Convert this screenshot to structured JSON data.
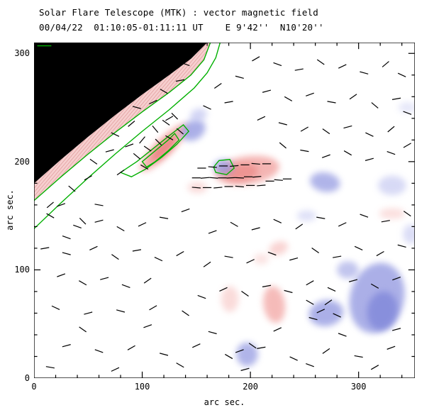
{
  "chart_data": {
    "type": "heatmap",
    "title": "Solar Flare Telescope (MTK) : vector magnetic field",
    "subtitle": "00/04/22  01:10:05-01:11:11 UT    E 9'42''  N10'20''",
    "xlabel": "arc sec.",
    "ylabel": "arc sec.",
    "xlim": [
      0,
      352
    ],
    "ylim": [
      0,
      310
    ],
    "xticks": [
      0,
      100,
      200,
      300
    ],
    "yticks": [
      0,
      100,
      200,
      300
    ],
    "minor_tick_step": 20,
    "contour_color": "#00b000",
    "positive_polarity_color": "#ef8f8c",
    "negative_polarity_color": "#8f95e0",
    "limb_region": [
      [
        0,
        180
      ],
      [
        25,
        202
      ],
      [
        50,
        223
      ],
      [
        75,
        243
      ],
      [
        100,
        262
      ],
      [
        125,
        280
      ],
      [
        145,
        295
      ],
      [
        160,
        310
      ],
      [
        0,
        310
      ]
    ],
    "limb_band": [
      [
        0,
        180
      ],
      [
        25,
        202
      ],
      [
        50,
        223
      ],
      [
        75,
        243
      ],
      [
        100,
        262
      ],
      [
        125,
        280
      ],
      [
        145,
        295
      ],
      [
        160,
        310
      ],
      [
        163,
        310
      ],
      [
        157,
        294
      ],
      [
        145,
        280
      ],
      [
        125,
        264
      ],
      [
        100,
        246
      ],
      [
        75,
        227
      ],
      [
        50,
        207
      ],
      [
        25,
        186
      ],
      [
        0,
        164
      ]
    ],
    "contours": [
      {
        "name": "limb-outer",
        "closed": false,
        "points": [
          [
            0,
            138
          ],
          [
            25,
            162
          ],
          [
            50,
            185
          ],
          [
            75,
            207
          ],
          [
            100,
            228
          ],
          [
            125,
            248
          ],
          [
            148,
            268
          ],
          [
            160,
            282
          ],
          [
            168,
            296
          ],
          [
            172,
            310
          ]
        ]
      },
      {
        "name": "limb-inner",
        "closed": false,
        "points": [
          [
            0,
            164
          ],
          [
            25,
            186
          ],
          [
            50,
            207
          ],
          [
            75,
            227
          ],
          [
            100,
            246
          ],
          [
            125,
            264
          ],
          [
            145,
            280
          ],
          [
            157,
            294
          ],
          [
            163,
            310
          ]
        ]
      },
      {
        "name": "active-region-loop",
        "closed": true,
        "points": [
          [
            80,
            190
          ],
          [
            95,
            200
          ],
          [
            110,
            212
          ],
          [
            125,
            224
          ],
          [
            138,
            234
          ],
          [
            143,
            228
          ],
          [
            132,
            216
          ],
          [
            118,
            204
          ],
          [
            103,
            193
          ],
          [
            90,
            186
          ]
        ]
      },
      {
        "name": "active-region-loop-inner",
        "closed": true,
        "points": [
          [
            100,
            200
          ],
          [
            112,
            210
          ],
          [
            124,
            220
          ],
          [
            130,
            226
          ],
          [
            134,
            220
          ],
          [
            124,
            210
          ],
          [
            112,
            200
          ],
          [
            104,
            195
          ]
        ]
      },
      {
        "name": "small-loop",
        "closed": true,
        "points": [
          [
            168,
            190
          ],
          [
            178,
            188
          ],
          [
            185,
            194
          ],
          [
            181,
            202
          ],
          [
            171,
            201
          ],
          [
            166,
            195
          ]
        ]
      },
      {
        "name": "top-left-dash",
        "closed": false,
        "points": [
          [
            3,
            307
          ],
          [
            16,
            307
          ]
        ]
      }
    ],
    "blobs": [
      {
        "x": 120,
        "y": 213,
        "rx": 30,
        "ry": 8,
        "rot": 45,
        "color": "#ef8f8c",
        "opacity": 0.7
      },
      {
        "x": 120,
        "y": 212,
        "rx": 16,
        "ry": 5,
        "rot": 45,
        "color": "#e87a78",
        "opacity": 0.75
      },
      {
        "x": 197,
        "y": 192,
        "rx": 30,
        "ry": 13,
        "rot": 8,
        "color": "#ef8f8c",
        "opacity": 0.65
      },
      {
        "x": 191,
        "y": 190,
        "rx": 16,
        "ry": 8,
        "rot": 8,
        "color": "#e87a78",
        "opacity": 0.55
      },
      {
        "x": 151,
        "y": 176,
        "rx": 9,
        "ry": 5,
        "rot": 0,
        "color": "#f4b0ae",
        "opacity": 0.45
      },
      {
        "x": 226,
        "y": 120,
        "rx": 9,
        "ry": 6,
        "rot": 20,
        "color": "#f4b0ae",
        "opacity": 0.55
      },
      {
        "x": 222,
        "y": 68,
        "rx": 10,
        "ry": 17,
        "rot": 8,
        "color": "#ef8f8c",
        "opacity": 0.6
      },
      {
        "x": 181,
        "y": 73,
        "rx": 8,
        "ry": 12,
        "rot": 0,
        "color": "#f4b0ae",
        "opacity": 0.45
      },
      {
        "x": 331,
        "y": 152,
        "rx": 12,
        "ry": 5,
        "rot": 0,
        "color": "#f4b0ae",
        "opacity": 0.4
      },
      {
        "x": 210,
        "y": 110,
        "rx": 7,
        "ry": 5,
        "rot": 0,
        "color": "#f4b0ae",
        "opacity": 0.35
      },
      {
        "x": 147,
        "y": 229,
        "rx": 12,
        "ry": 9,
        "rot": 30,
        "color": "#8f95e0",
        "opacity": 0.75
      },
      {
        "x": 152,
        "y": 243,
        "rx": 8,
        "ry": 6,
        "rot": 20,
        "color": "#b8bcee",
        "opacity": 0.6
      },
      {
        "x": 175,
        "y": 195,
        "rx": 9,
        "ry": 7,
        "rot": 0,
        "color": "#8f95e0",
        "opacity": 0.75
      },
      {
        "x": 269,
        "y": 181,
        "rx": 14,
        "ry": 9,
        "rot": -10,
        "color": "#8f95e0",
        "opacity": 0.7
      },
      {
        "x": 331,
        "y": 178,
        "rx": 13,
        "ry": 9,
        "rot": 0,
        "color": "#b8bcee",
        "opacity": 0.55
      },
      {
        "x": 317,
        "y": 74,
        "rx": 25,
        "ry": 33,
        "rot": -15,
        "color": "#8f95e0",
        "opacity": 0.75
      },
      {
        "x": 322,
        "y": 62,
        "rx": 14,
        "ry": 18,
        "rot": -10,
        "color": "#7a82d8",
        "opacity": 0.7
      },
      {
        "x": 290,
        "y": 100,
        "rx": 10,
        "ry": 8,
        "rot": 0,
        "color": "#8f95e0",
        "opacity": 0.55
      },
      {
        "x": 270,
        "y": 60,
        "rx": 16,
        "ry": 12,
        "rot": 10,
        "color": "#8f95e0",
        "opacity": 0.75
      },
      {
        "x": 197,
        "y": 22,
        "rx": 10,
        "ry": 11,
        "rot": 0,
        "color": "#8f95e0",
        "opacity": 0.7
      },
      {
        "x": 252,
        "y": 150,
        "rx": 9,
        "ry": 5,
        "rot": 0,
        "color": "#b8bcee",
        "opacity": 0.45
      },
      {
        "x": 348,
        "y": 133,
        "rx": 7,
        "ry": 9,
        "rot": 0,
        "color": "#b8bcee",
        "opacity": 0.5
      },
      {
        "x": 345,
        "y": 250,
        "rx": 8,
        "ry": 5,
        "rot": 0,
        "color": "#b8bcee",
        "opacity": 0.35
      }
    ],
    "vector_length": 8,
    "vectors": [
      [
        15,
        150,
        -30
      ],
      [
        25,
        160,
        20
      ],
      [
        35,
        175,
        -40
      ],
      [
        10,
        120,
        10
      ],
      [
        30,
        130,
        -20
      ],
      [
        50,
        185,
        30
      ],
      [
        55,
        200,
        -35
      ],
      [
        70,
        210,
        15
      ],
      [
        75,
        225,
        -25
      ],
      [
        90,
        235,
        40
      ],
      [
        95,
        250,
        -15
      ],
      [
        110,
        255,
        25
      ],
      [
        120,
        265,
        -30
      ],
      [
        135,
        275,
        10
      ],
      [
        60,
        160,
        -10
      ],
      [
        80,
        190,
        35
      ],
      [
        45,
        145,
        -45
      ],
      [
        100,
        220,
        50
      ],
      [
        140,
        290,
        -20
      ],
      [
        125,
        240,
        30
      ],
      [
        150,
        185,
        0
      ],
      [
        158,
        185,
        5
      ],
      [
        166,
        185,
        -5
      ],
      [
        174,
        185,
        0
      ],
      [
        182,
        185,
        3
      ],
      [
        190,
        185,
        -3
      ],
      [
        198,
        186,
        0
      ],
      [
        206,
        186,
        5
      ],
      [
        150,
        176,
        -5
      ],
      [
        160,
        176,
        0
      ],
      [
        170,
        176,
        5
      ],
      [
        180,
        177,
        0
      ],
      [
        190,
        177,
        -5
      ],
      [
        200,
        178,
        0
      ],
      [
        210,
        178,
        5
      ],
      [
        218,
        182,
        0
      ],
      [
        226,
        183,
        -5
      ],
      [
        234,
        184,
        0
      ],
      [
        155,
        194,
        0
      ],
      [
        165,
        195,
        -5
      ],
      [
        175,
        196,
        0
      ],
      [
        185,
        196,
        5
      ],
      [
        195,
        197,
        0
      ],
      [
        205,
        198,
        -5
      ],
      [
        215,
        198,
        0
      ],
      [
        95,
        205,
        -40
      ],
      [
        105,
        212,
        -35
      ],
      [
        115,
        218,
        -45
      ],
      [
        125,
        222,
        -30
      ],
      [
        135,
        228,
        -40
      ],
      [
        112,
        230,
        -50
      ],
      [
        122,
        236,
        -35
      ],
      [
        130,
        242,
        -45
      ],
      [
        102,
        195,
        -30
      ],
      [
        88,
        215,
        20
      ],
      [
        205,
        295,
        30
      ],
      [
        225,
        290,
        -20
      ],
      [
        245,
        285,
        10
      ],
      [
        265,
        292,
        -35
      ],
      [
        285,
        288,
        25
      ],
      [
        305,
        282,
        -15
      ],
      [
        325,
        290,
        40
      ],
      [
        340,
        280,
        -25
      ],
      [
        215,
        265,
        15
      ],
      [
        235,
        258,
        -30
      ],
      [
        255,
        262,
        20
      ],
      [
        275,
        255,
        -10
      ],
      [
        295,
        260,
        35
      ],
      [
        315,
        252,
        -40
      ],
      [
        335,
        258,
        10
      ],
      [
        345,
        245,
        -20
      ],
      [
        210,
        240,
        25
      ],
      [
        230,
        235,
        -15
      ],
      [
        250,
        230,
        30
      ],
      [
        270,
        228,
        -35
      ],
      [
        290,
        232,
        15
      ],
      [
        310,
        225,
        -25
      ],
      [
        330,
        230,
        40
      ],
      [
        250,
        210,
        -10
      ],
      [
        270,
        205,
        20
      ],
      [
        290,
        208,
        -30
      ],
      [
        310,
        202,
        15
      ],
      [
        330,
        208,
        -20
      ],
      [
        345,
        215,
        30
      ],
      [
        230,
        215,
        -40
      ],
      [
        180,
        255,
        10
      ],
      [
        160,
        250,
        -25
      ],
      [
        170,
        270,
        35
      ],
      [
        190,
        278,
        -15
      ],
      [
        25,
        95,
        20
      ],
      [
        45,
        88,
        -30
      ],
      [
        65,
        92,
        15
      ],
      [
        85,
        85,
        -20
      ],
      [
        105,
        90,
        35
      ],
      [
        30,
        115,
        -15
      ],
      [
        55,
        120,
        25
      ],
      [
        75,
        112,
        -35
      ],
      [
        95,
        118,
        10
      ],
      [
        115,
        110,
        -25
      ],
      [
        135,
        115,
        30
      ],
      [
        40,
        140,
        -20
      ],
      [
        60,
        145,
        15
      ],
      [
        80,
        138,
        -30
      ],
      [
        100,
        142,
        25
      ],
      [
        120,
        148,
        -10
      ],
      [
        140,
        155,
        20
      ],
      [
        20,
        65,
        -25
      ],
      [
        50,
        60,
        15
      ],
      [
        80,
        62,
        -15
      ],
      [
        110,
        65,
        30
      ],
      [
        140,
        60,
        -35
      ],
      [
        15,
        160,
        40
      ],
      [
        30,
        30,
        15
      ],
      [
        60,
        25,
        -20
      ],
      [
        90,
        28,
        30
      ],
      [
        120,
        22,
        -15
      ],
      [
        150,
        30,
        25
      ],
      [
        180,
        20,
        -30
      ],
      [
        210,
        28,
        10
      ],
      [
        240,
        18,
        -25
      ],
      [
        270,
        25,
        35
      ],
      [
        300,
        20,
        -10
      ],
      [
        330,
        28,
        20
      ],
      [
        45,
        45,
        -35
      ],
      [
        105,
        48,
        20
      ],
      [
        165,
        42,
        -15
      ],
      [
        225,
        45,
        25
      ],
      [
        285,
        40,
        -20
      ],
      [
        335,
        45,
        15
      ],
      [
        15,
        10,
        -10
      ],
      [
        75,
        8,
        25
      ],
      [
        135,
        12,
        -30
      ],
      [
        195,
        8,
        15
      ],
      [
        255,
        12,
        -20
      ],
      [
        315,
        10,
        30
      ],
      [
        155,
        75,
        -20
      ],
      [
        175,
        82,
        25
      ],
      [
        195,
        78,
        -35
      ],
      [
        215,
        85,
        10
      ],
      [
        235,
        80,
        -15
      ],
      [
        255,
        88,
        30
      ],
      [
        275,
        82,
        -25
      ],
      [
        295,
        90,
        15
      ],
      [
        315,
        85,
        -30
      ],
      [
        335,
        92,
        20
      ],
      [
        160,
        105,
        35
      ],
      [
        180,
        112,
        -10
      ],
      [
        200,
        108,
        25
      ],
      [
        220,
        115,
        -20
      ],
      [
        240,
        110,
        15
      ],
      [
        260,
        118,
        -35
      ],
      [
        280,
        112,
        10
      ],
      [
        300,
        120,
        -25
      ],
      [
        320,
        115,
        30
      ],
      [
        340,
        122,
        -15
      ],
      [
        165,
        135,
        20
      ],
      [
        185,
        142,
        -30
      ],
      [
        205,
        138,
        15
      ],
      [
        225,
        145,
        -25
      ],
      [
        245,
        140,
        35
      ],
      [
        265,
        148,
        -10
      ],
      [
        285,
        142,
        25
      ],
      [
        305,
        150,
        -20
      ],
      [
        325,
        145,
        10
      ],
      [
        345,
        152,
        -35
      ],
      [
        255,
        70,
        -30
      ],
      [
        265,
        62,
        25
      ],
      [
        258,
        55,
        -15
      ],
      [
        272,
        70,
        35
      ],
      [
        280,
        58,
        -25
      ],
      [
        190,
        25,
        20
      ],
      [
        202,
        30,
        -35
      ]
    ]
  }
}
